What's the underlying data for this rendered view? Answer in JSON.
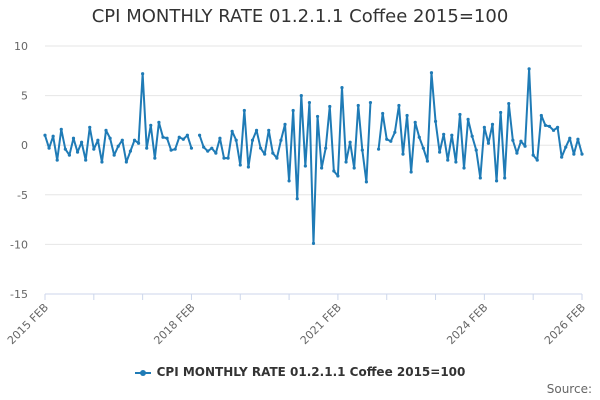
{
  "chart_data": {
    "type": "line",
    "title": "CPI MONTHLY RATE 01.2.1.1 Coffee 2015=100",
    "xlabel": "",
    "ylabel": "",
    "ylim": [
      -15,
      10
    ],
    "yticks": [
      10,
      5,
      0,
      -5,
      -10,
      -15
    ],
    "xlim": [
      "2015-02",
      "2026-02"
    ],
    "xtick_labels": [
      "2015 FEB",
      "2018 FEB",
      "2021 FEB",
      "2024 FEB",
      "2026 FEB"
    ],
    "grid": "horizontal",
    "legend_position": "bottom",
    "color": "#1f7bb6",
    "series": [
      {
        "name": "CPI MONTHLY RATE 01.2.1.1 Coffee 2015=100",
        "x": [
          "2015-02",
          "2015-03",
          "2015-04",
          "2015-05",
          "2015-06",
          "2015-07",
          "2015-08",
          "2015-09",
          "2015-10",
          "2015-11",
          "2015-12",
          "2016-01",
          "2016-02",
          "2016-03",
          "2016-04",
          "2016-05",
          "2016-06",
          "2016-07",
          "2016-08",
          "2016-09",
          "2016-10",
          "2016-11",
          "2016-12",
          "2017-01",
          "2017-02",
          "2017-03",
          "2017-04",
          "2017-05",
          "2017-06",
          "2017-07",
          "2017-08",
          "2017-09",
          "2017-10",
          "2017-11",
          "2017-12",
          "2018-01",
          "2018-02",
          "2018-03",
          "2018-04",
          "2018-05",
          "2018-06",
          "2018-07",
          "2018-08",
          "2018-09",
          "2018-10",
          "2018-11",
          "2018-12",
          "2019-01",
          "2019-02",
          "2019-03",
          "2019-04",
          "2019-05",
          "2019-06",
          "2019-07",
          "2019-08",
          "2019-09",
          "2019-10",
          "2019-11",
          "2019-12",
          "2020-01",
          "2020-02",
          "2020-03",
          "2020-04",
          "2020-05",
          "2020-06",
          "2020-07",
          "2020-08",
          "2020-09",
          "2020-10",
          "2020-11",
          "2020-12",
          "2021-01",
          "2021-02",
          "2021-03",
          "2021-04",
          "2021-05",
          "2021-06",
          "2021-07",
          "2021-08",
          "2021-09",
          "2021-10",
          "2021-11",
          "2021-12",
          "2022-01",
          "2022-02",
          "2022-03",
          "2022-04",
          "2022-05",
          "2022-06",
          "2022-07",
          "2022-08",
          "2022-09",
          "2022-10",
          "2022-11",
          "2022-12",
          "2023-01",
          "2023-02",
          "2023-03",
          "2023-04",
          "2023-05",
          "2023-06",
          "2023-07",
          "2023-08",
          "2023-09",
          "2023-10",
          "2023-11",
          "2023-12",
          "2024-01",
          "2024-02",
          "2024-03",
          "2024-04",
          "2024-05",
          "2024-06",
          "2024-07",
          "2024-08",
          "2024-09",
          "2024-10",
          "2024-11",
          "2024-12",
          "2025-01",
          "2025-02",
          "2025-03",
          "2025-04",
          "2025-05",
          "2025-06",
          "2025-07",
          "2025-08",
          "2025-09",
          "2025-10",
          "2025-11",
          "2025-12",
          "2026-01",
          "2026-02"
        ],
        "values": [
          1.0,
          -0.3,
          0.9,
          -1.5,
          1.6,
          -0.4,
          -1.0,
          0.7,
          -0.7,
          0.3,
          -1.5,
          1.8,
          -0.4,
          0.5,
          -1.7,
          1.5,
          0.7,
          -1.0,
          -0.1,
          0.5,
          -1.7,
          -0.6,
          0.5,
          0.2,
          7.2,
          -0.3,
          2.0,
          -1.3,
          2.3,
          0.8,
          0.7,
          -0.5,
          -0.4,
          0.8,
          0.6,
          1.0,
          -0.3,
          null,
          1.0,
          -0.2,
          -0.6,
          -0.3,
          -0.8,
          0.7,
          -1.3,
          -1.3,
          1.4,
          0.5,
          -2.0,
          3.5,
          -2.2,
          0.5,
          1.5,
          -0.3,
          -0.9,
          1.5,
          -0.8,
          -1.3,
          0.5,
          2.1,
          -3.6,
          3.5,
          -5.4,
          5.0,
          -2.1,
          4.3,
          -9.9,
          2.9,
          -2.3,
          -0.3,
          3.9,
          -2.6,
          -3.1,
          5.8,
          -1.7,
          0.3,
          -2.3,
          4.0,
          -0.5,
          -3.7,
          4.3,
          null,
          -0.4,
          3.2,
          0.6,
          0.4,
          1.3,
          4.0,
          -0.9,
          3.0,
          -2.7,
          2.3,
          0.8,
          -0.3,
          -1.6,
          7.3,
          2.4,
          -0.7,
          1.1,
          -1.5,
          1.0,
          -1.7,
          3.1,
          -2.3,
          2.6,
          0.9,
          -0.5,
          -3.3,
          1.8,
          0.2,
          2.1,
          -3.6,
          3.3,
          -3.3,
          4.2,
          0.5,
          -0.8,
          0.4,
          -0.1,
          7.7,
          -1.0,
          -1.5,
          3.0,
          2.0,
          1.9,
          1.5,
          1.8,
          -1.2,
          -0.2,
          0.7,
          -0.9,
          0.6,
          -0.9
        ]
      }
    ]
  },
  "legend": {
    "label": "CPI MONTHLY RATE 01.2.1.1 Coffee 2015=100"
  },
  "source_label": "Source:"
}
